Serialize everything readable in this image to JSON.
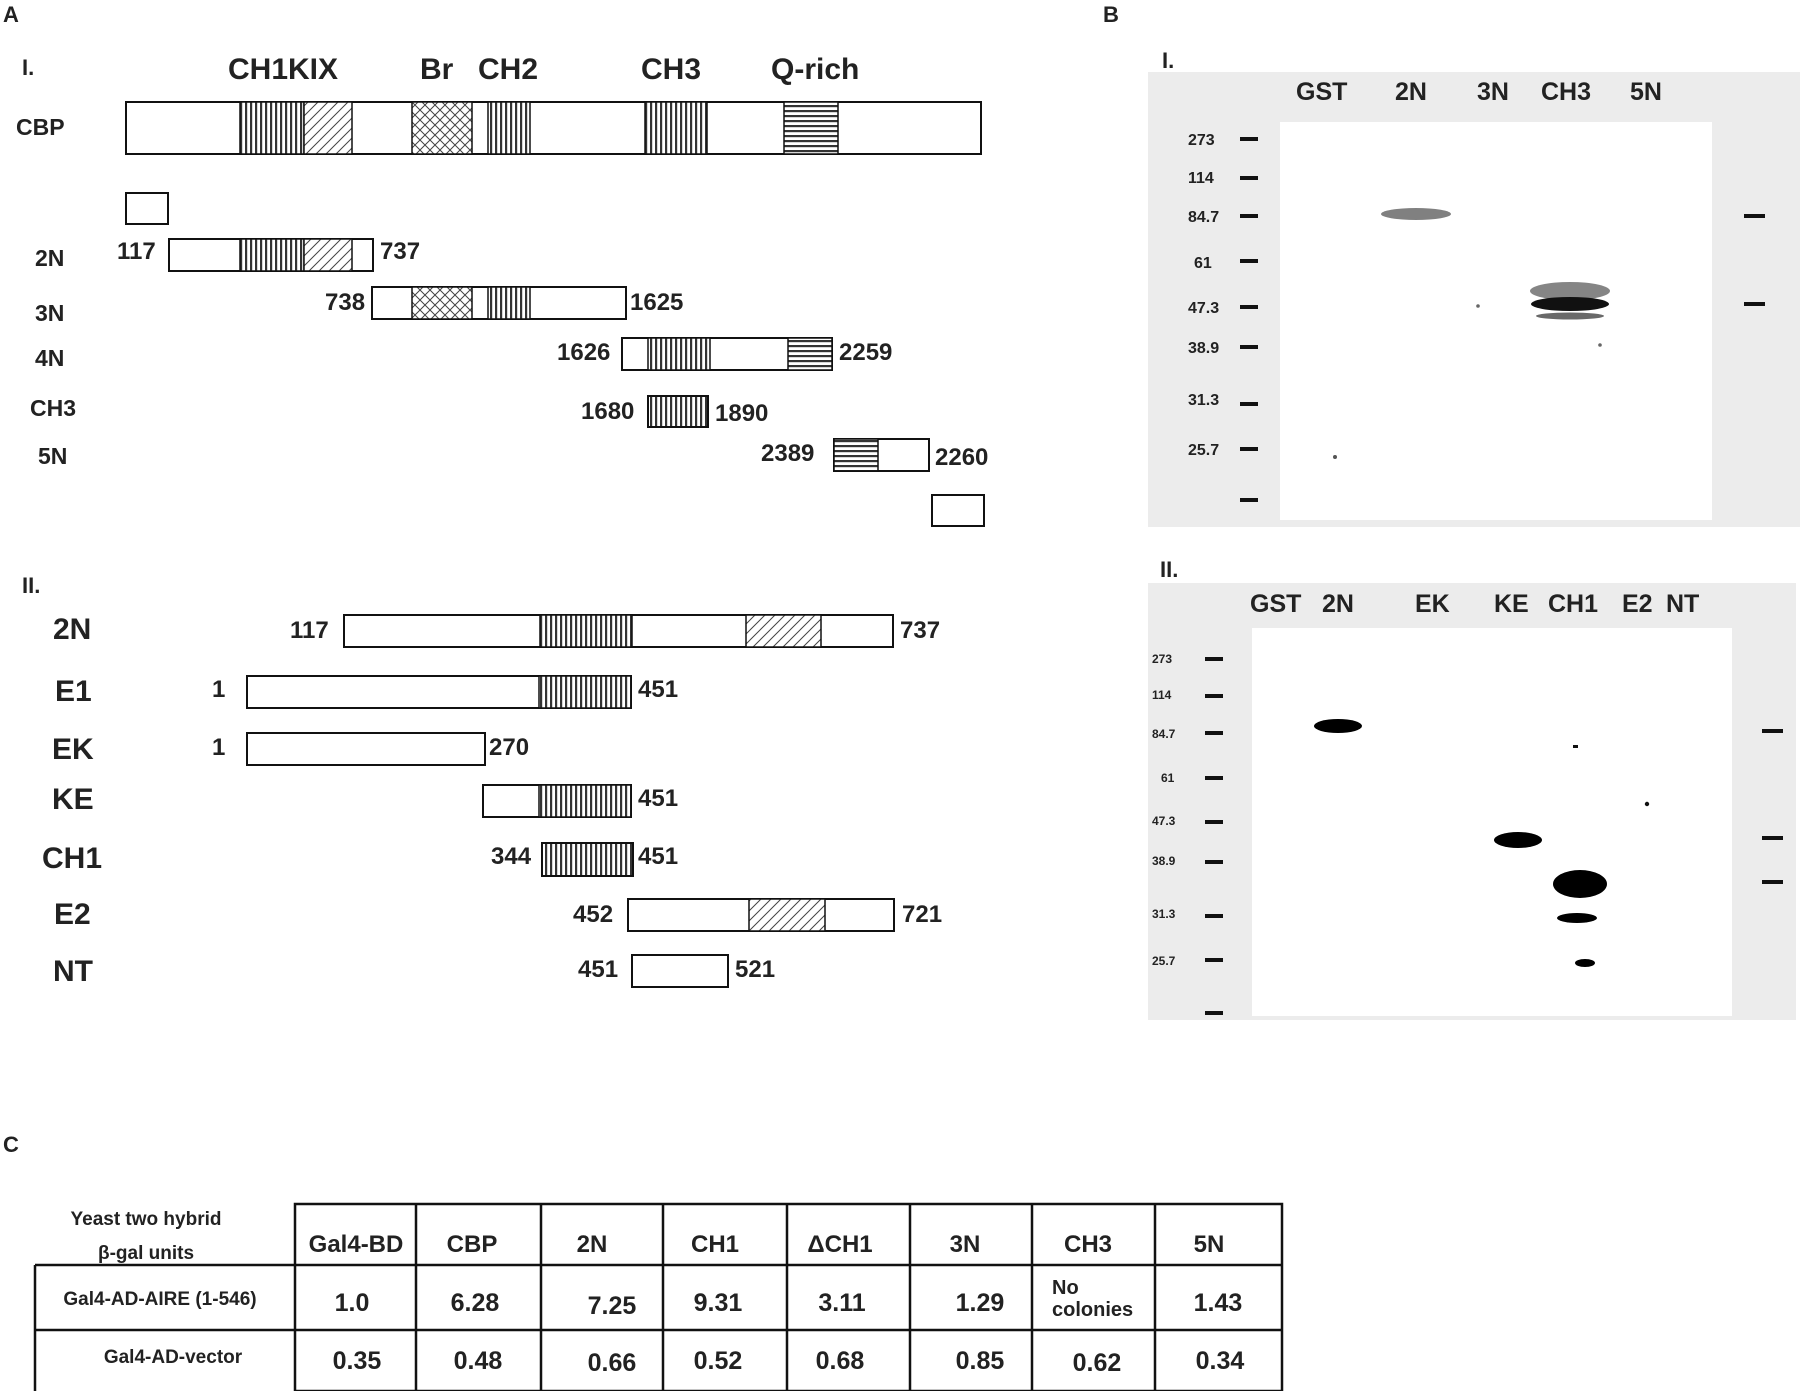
{
  "panels": {
    "a": "A",
    "b": "B",
    "c": "C"
  },
  "panel_a": {
    "section_i": "I.",
    "section_ii": "II.",
    "domains": {
      "ch1kix": "CH1KIX",
      "br": "Br",
      "ch2": "CH2",
      "ch3": "CH3",
      "qrich": "Q-rich"
    },
    "cbp_label": "CBP",
    "rows_i": [
      {
        "name": "2N",
        "start": "117",
        "end": "737"
      },
      {
        "name": "3N",
        "start": "738",
        "end": "1625"
      },
      {
        "name": "4N",
        "start": "1626",
        "end": "2259"
      },
      {
        "name": "CH3",
        "start": "1680",
        "end": "1890"
      },
      {
        "name": "5N",
        "start": "2389",
        "end": "2260"
      }
    ],
    "rows_ii": [
      {
        "name": "2N",
        "start": "117",
        "end": "737"
      },
      {
        "name": "E1",
        "start": "1",
        "end": "451"
      },
      {
        "name": "EK",
        "start": "1",
        "end": "270"
      },
      {
        "name": "KE",
        "start": "",
        "end": "451"
      },
      {
        "name": "CH1",
        "start": "344",
        "end": "451"
      },
      {
        "name": "E2",
        "start": "452",
        "end": "721"
      },
      {
        "name": "NT",
        "start": "451",
        "end": "521"
      }
    ]
  },
  "panel_b": {
    "blot_i": {
      "label": "I.",
      "lanes": [
        "GST",
        "2N",
        "3N",
        "CH3",
        "5N"
      ],
      "markers": [
        "273",
        "114",
        "84.7",
        "61",
        "47.3",
        "38.9",
        "31.3",
        "25.7"
      ]
    },
    "blot_ii": {
      "label": "II.",
      "lanes": [
        "GST",
        "2N",
        "EK",
        "KE",
        "CH1",
        "E2",
        "NT"
      ],
      "markers": [
        "273",
        "114",
        "84.7",
        "61",
        "47.3",
        "38.9",
        "31.3",
        "25.7"
      ]
    }
  },
  "panel_c": {
    "title_line1": "Yeast two hybrid",
    "title_line2": "β-gal units",
    "columns": [
      "Gal4-BD",
      "CBP",
      "2N",
      "CH1",
      "ΔCH1",
      "3N",
      "CH3",
      "5N"
    ],
    "rows": [
      {
        "label": "Gal4-AD-AIRE (1-546)",
        "values": [
          "1.0",
          "6.28",
          "7.25",
          "9.31",
          "3.11",
          "1.29",
          "No colonies",
          "1.43"
        ]
      },
      {
        "label": "Gal4-AD-vector",
        "values": [
          "0.35",
          "0.48",
          "0.66",
          "0.52",
          "0.68",
          "0.85",
          "0.62",
          "0.34"
        ]
      }
    ]
  }
}
